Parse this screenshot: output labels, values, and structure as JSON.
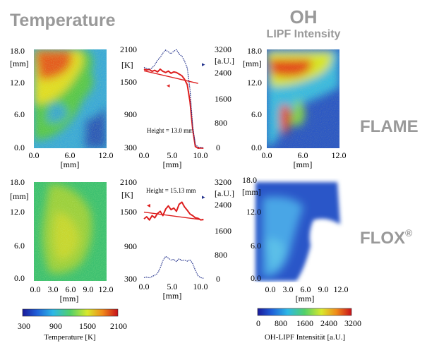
{
  "headings": {
    "temperature": "Temperature",
    "oh_line1": "OH",
    "oh_line2": "LIPF Intensity",
    "row1": "FLAME",
    "row2": "FLOX",
    "row2_sup": "®"
  },
  "colors": {
    "heading_gray": "#999999",
    "temperature_profile": "#dd1e1e",
    "oh_profile": "#1f2e8a"
  },
  "colorbars": {
    "temperature": {
      "ticks": [
        "300",
        "900",
        "1500",
        "2100"
      ],
      "label": "Temperature [K]",
      "range": [
        300,
        2100
      ]
    },
    "oh": {
      "ticks": [
        "0",
        "800",
        "1600",
        "2400",
        "3200"
      ],
      "label": "OH-LIPF Intensität [a.U.]",
      "range": [
        0,
        3200
      ]
    }
  },
  "chart_data": [
    {
      "type": "heatmap",
      "panel": "flame-temperature-map",
      "y_unit": "[mm]",
      "x_unit": "[mm]",
      "y_ticks": [
        "18.0",
        "12.0",
        "6.0",
        "0.0"
      ],
      "x_ticks": [
        "0.0",
        "6.0",
        "12.0"
      ],
      "xlim": [
        0,
        12
      ],
      "ylim": [
        0,
        18
      ],
      "colorscale": "jet",
      "zlim": [
        300,
        2100
      ]
    },
    {
      "type": "line",
      "panel": "flame-profiles",
      "annotation": "Height = 13.0 mm",
      "x_unit": "[mm]",
      "x_ticks": [
        "0.0",
        "5.0",
        "10.0"
      ],
      "y_left_unit": "[K]",
      "y_left_ticks": [
        "2100",
        "1500",
        "900",
        "300"
      ],
      "y_right_unit": "[a.U.]",
      "y_right_ticks": [
        "3200",
        "2400",
        "1600",
        "800",
        "0"
      ],
      "xlim": [
        0,
        12
      ],
      "ylim_left": [
        300,
        2100
      ],
      "ylim_right": [
        0,
        3200
      ],
      "series": [
        {
          "axis": "left",
          "x": [
            0,
            0.5,
            1,
            1.5,
            2,
            2.5,
            3,
            3.5,
            4,
            4.5,
            5,
            5.5,
            6,
            6.5,
            7,
            7.5,
            8,
            8.5,
            9,
            9.5,
            10,
            10.5,
            11
          ],
          "values": [
            1740,
            1725,
            1735,
            1700,
            1720,
            1690,
            1740,
            1700,
            1680,
            1705,
            1665,
            1690,
            1680,
            1650,
            1620,
            1555,
            1460,
            1150,
            650,
            330,
            300,
            305,
            300
          ]
        },
        {
          "axis": "left",
          "x": [
            0,
            10
          ],
          "values": [
            1710,
            1480
          ]
        },
        {
          "axis": "right",
          "x": [
            0,
            0.5,
            1,
            1.5,
            2,
            2.5,
            3,
            3.5,
            4,
            4.5,
            5,
            5.5,
            6,
            6.5,
            7,
            7.5,
            8,
            8.5,
            9,
            9.5,
            10,
            10.5,
            11
          ],
          "values": [
            2620,
            2580,
            2560,
            2600,
            2700,
            2850,
            2940,
            3080,
            3180,
            3120,
            3060,
            3140,
            3190,
            3050,
            2980,
            2820,
            2600,
            1900,
            700,
            120,
            40,
            20,
            10
          ]
        }
      ]
    },
    {
      "type": "heatmap",
      "panel": "flame-oh-map",
      "y_unit": "[mm]",
      "x_unit": "[mm]",
      "y_ticks": [
        "18.0",
        "12.0",
        "6.0",
        "0.0"
      ],
      "x_ticks": [
        "0.0",
        "6.0",
        "12.0"
      ],
      "xlim": [
        0,
        12
      ],
      "ylim": [
        0,
        18
      ],
      "colorscale": "jet",
      "zlim": [
        0,
        3200
      ]
    },
    {
      "type": "heatmap",
      "panel": "flox-temperature-map",
      "y_unit": "[mm]",
      "x_unit": "[mm]",
      "y_ticks": [
        "18.0",
        "12.0",
        "6.0",
        "0.0"
      ],
      "x_ticks": [
        "0.0",
        "3.0",
        "6.0",
        "9.0",
        "12.0"
      ],
      "xlim": [
        0,
        12
      ],
      "ylim": [
        0,
        18
      ],
      "colorscale": "jet",
      "zlim": [
        300,
        2100
      ]
    },
    {
      "type": "line",
      "panel": "flox-profiles",
      "annotation": "Height = 15.13 mm",
      "x_unit": "[mm]",
      "x_ticks": [
        "0.0",
        "5.0",
        "10.0"
      ],
      "y_left_unit": "[K]",
      "y_left_ticks": [
        "2100",
        "1500",
        "900",
        "300"
      ],
      "y_right_unit": "[a.U.]",
      "y_right_ticks": [
        "3200",
        "2400",
        "1600",
        "800",
        "0"
      ],
      "xlim": [
        0,
        12
      ],
      "ylim_left": [
        300,
        2100
      ],
      "ylim_right": [
        0,
        3200
      ],
      "series": [
        {
          "axis": "left",
          "x": [
            0,
            0.5,
            1,
            1.5,
            2,
            2.5,
            3,
            3.5,
            4,
            4.5,
            5,
            5.5,
            6,
            6.5,
            7,
            7.5,
            8,
            8.5,
            9,
            9.5,
            10,
            10.5,
            11
          ],
          "values": [
            1420,
            1460,
            1400,
            1480,
            1440,
            1520,
            1560,
            1480,
            1600,
            1660,
            1590,
            1620,
            1560,
            1690,
            1730,
            1640,
            1580,
            1510,
            1480,
            1440,
            1430,
            1400,
            1410
          ]
        },
        {
          "axis": "left",
          "x": [
            0,
            11
          ],
          "values": [
            1545,
            1400
          ]
        },
        {
          "axis": "right",
          "x": [
            0,
            0.5,
            1,
            1.5,
            2,
            2.5,
            3,
            3.5,
            4,
            4.5,
            5,
            5.5,
            6,
            6.5,
            7,
            7.5,
            8,
            8.5,
            9,
            9.5,
            10,
            10.5,
            11
          ],
          "values": [
            60,
            80,
            50,
            100,
            140,
            200,
            380,
            620,
            760,
            700,
            640,
            660,
            590,
            680,
            620,
            640,
            600,
            650,
            520,
            300,
            120,
            60,
            40
          ]
        }
      ]
    },
    {
      "type": "heatmap",
      "panel": "flox-oh-map",
      "y_unit": "[mm]",
      "x_unit": "[mm]",
      "y_ticks": [
        "18.0",
        "12.0",
        "6.0",
        "0.0"
      ],
      "x_ticks": [
        "0.0",
        "3.0",
        "6.0",
        "9.0",
        "12.0"
      ],
      "xlim": [
        0,
        12
      ],
      "ylim": [
        0,
        18
      ],
      "colorscale": "jet",
      "zlim": [
        0,
        3200
      ]
    }
  ]
}
